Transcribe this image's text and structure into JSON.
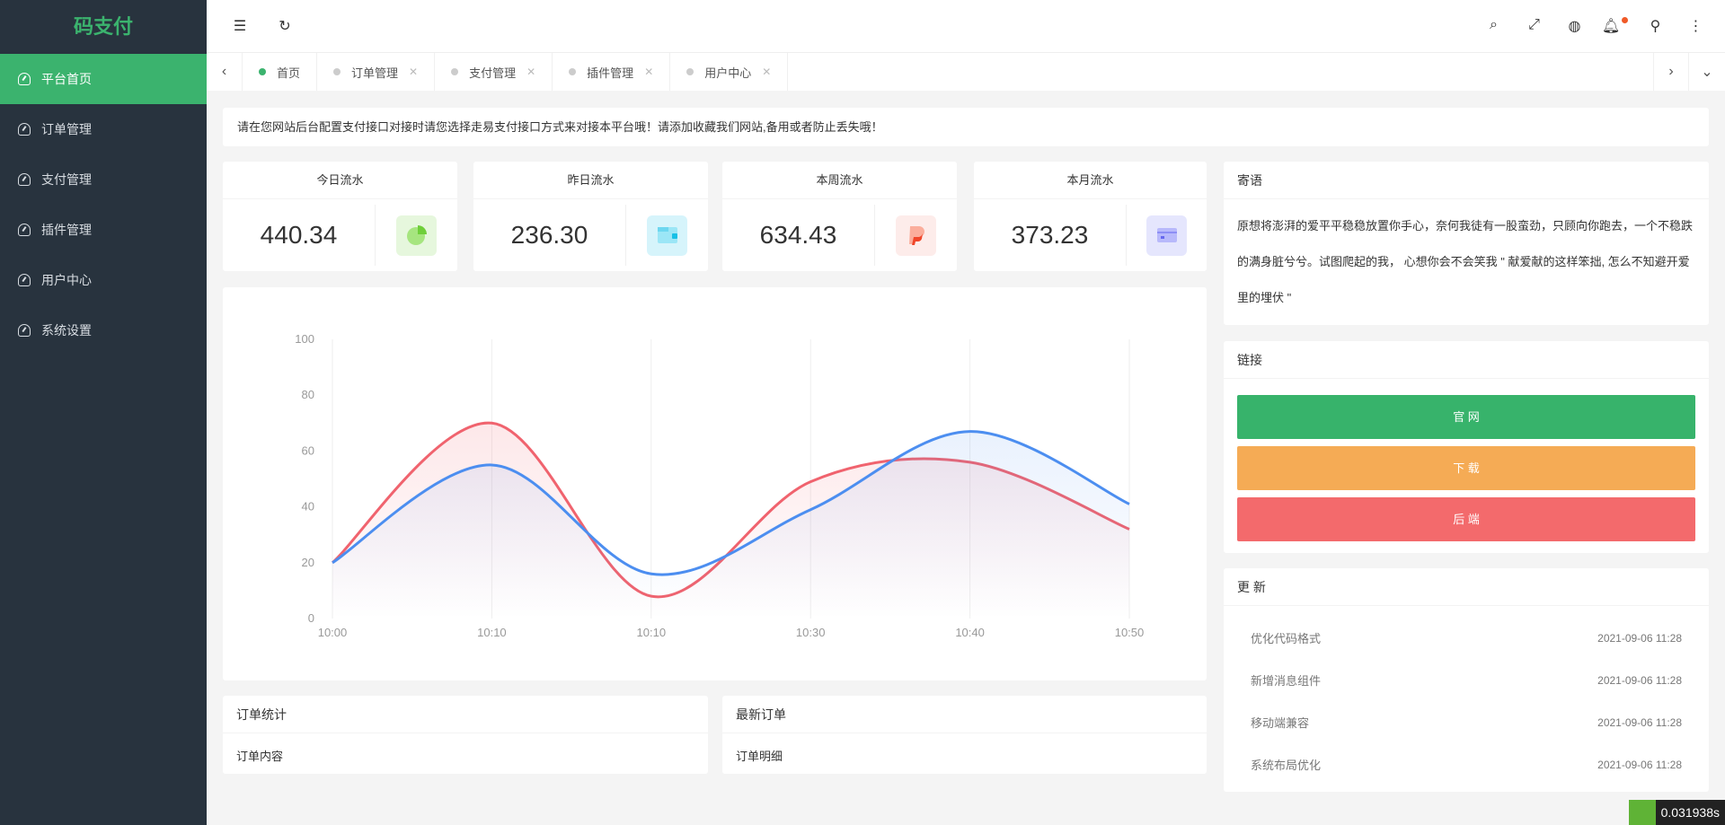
{
  "sidebar": {
    "logo": "码支付",
    "items": [
      {
        "label": "平台首页",
        "active": true
      },
      {
        "label": "订单管理"
      },
      {
        "label": "支付管理"
      },
      {
        "label": "插件管理"
      },
      {
        "label": "用户中心"
      },
      {
        "label": "系统设置"
      }
    ]
  },
  "header": {
    "icons": [
      "menu-fold-icon",
      "refresh-icon",
      "search-icon",
      "fullscreen-icon",
      "globe-icon",
      "bell-icon",
      "user-icon",
      "more-icon"
    ]
  },
  "tabs": [
    {
      "label": "首页"
    },
    {
      "label": "订单管理"
    },
    {
      "label": "支付管理"
    },
    {
      "label": "插件管理"
    },
    {
      "label": "用户中心"
    }
  ],
  "notice": "请在您网站后台配置支付接口对接时请您选择走易支付接口方式来对接本平台哦！请添加收藏我们网站,备用或者防止丢失哦！",
  "stats": [
    {
      "title": "今日流水",
      "value": "440.34",
      "color": "#e6f7dd"
    },
    {
      "title": "昨日流水",
      "value": "236.30",
      "color": "#d6f4fb"
    },
    {
      "title": "本周流水",
      "value": "634.43",
      "color": "#fdecea"
    },
    {
      "title": "本月流水",
      "value": "373.23",
      "color": "#e5e6fd"
    }
  ],
  "chart_data": {
    "type": "area",
    "categories": [
      "10:00",
      "10:10",
      "10:10",
      "10:30",
      "10:40",
      "10:50"
    ],
    "series": [
      {
        "values": [
          20,
          70,
          8,
          49,
          56,
          32
        ],
        "color": "#f0636e"
      },
      {
        "values": [
          20,
          55,
          16,
          39,
          67,
          41
        ],
        "color": "#4c8ef0"
      }
    ],
    "ylim": [
      0,
      100
    ],
    "yticks": [
      "0",
      "20",
      "40",
      "60",
      "80",
      "100"
    ],
    "grid": "vertical"
  },
  "order_stats": {
    "title": "订单统计",
    "content": "订单内容"
  },
  "latest_orders": {
    "title": "最新订单",
    "content": "订单明细"
  },
  "message": {
    "title": "寄语",
    "text": "原想将澎湃的爱平平稳稳放置你手心，奈何我徒有一股蛮劲，只顾向你跑去，一个不稳跌的满身脏兮兮。试图爬起的我， 心想你会不会笑我 \" 献爱献的这样笨拙, 怎么不知避开爱里的埋伏 \""
  },
  "links": {
    "title": "链接",
    "buttons": [
      {
        "label": "官 网",
        "color": "#37b36b"
      },
      {
        "label": "下 载",
        "color": "#f5ab55"
      },
      {
        "label": "后 端",
        "color": "#f36a6c"
      }
    ]
  },
  "updates": {
    "title": "更 新",
    "items": [
      {
        "text": "优化代码格式",
        "time": "2021-09-06 11:28"
      },
      {
        "text": "新增消息组件",
        "time": "2021-09-06 11:28"
      },
      {
        "text": "移动端兼容",
        "time": "2021-09-06 11:28"
      },
      {
        "text": "系统布局优化",
        "time": "2021-09-06 11:28"
      }
    ]
  },
  "timer": "0.031938s"
}
